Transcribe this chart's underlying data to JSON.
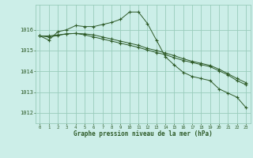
{
  "xlabel": "Graphe pression niveau de la mer (hPa)",
  "background_color": "#cceee8",
  "grid_color": "#99ccbb",
  "line_color": "#2d5a27",
  "ylim": [
    1011.5,
    1017.2
  ],
  "xlim": [
    -0.5,
    23.5
  ],
  "yticks": [
    1012,
    1013,
    1014,
    1015,
    1016
  ],
  "xticks": [
    0,
    1,
    2,
    3,
    4,
    5,
    6,
    7,
    8,
    9,
    10,
    11,
    12,
    13,
    14,
    15,
    16,
    17,
    18,
    19,
    20,
    21,
    22,
    23
  ],
  "series1": [
    1015.7,
    1015.5,
    1015.9,
    1016.0,
    1016.2,
    1016.15,
    1016.15,
    1016.25,
    1016.35,
    1016.5,
    1016.85,
    1016.85,
    1016.3,
    1015.5,
    1014.7,
    1014.3,
    1013.95,
    1013.75,
    1013.65,
    1013.55,
    1013.15,
    1012.95,
    1012.75,
    1012.25
  ],
  "series2": [
    1015.7,
    1015.7,
    1015.75,
    1015.8,
    1015.82,
    1015.8,
    1015.75,
    1015.65,
    1015.55,
    1015.45,
    1015.35,
    1015.25,
    1015.1,
    1015.0,
    1014.88,
    1014.75,
    1014.6,
    1014.48,
    1014.38,
    1014.28,
    1014.1,
    1013.88,
    1013.65,
    1013.45
  ],
  "series3": [
    1015.7,
    1015.65,
    1015.72,
    1015.8,
    1015.82,
    1015.75,
    1015.65,
    1015.55,
    1015.45,
    1015.35,
    1015.25,
    1015.15,
    1015.02,
    1014.9,
    1014.8,
    1014.65,
    1014.52,
    1014.42,
    1014.32,
    1014.22,
    1014.02,
    1013.82,
    1013.55,
    1013.35
  ]
}
